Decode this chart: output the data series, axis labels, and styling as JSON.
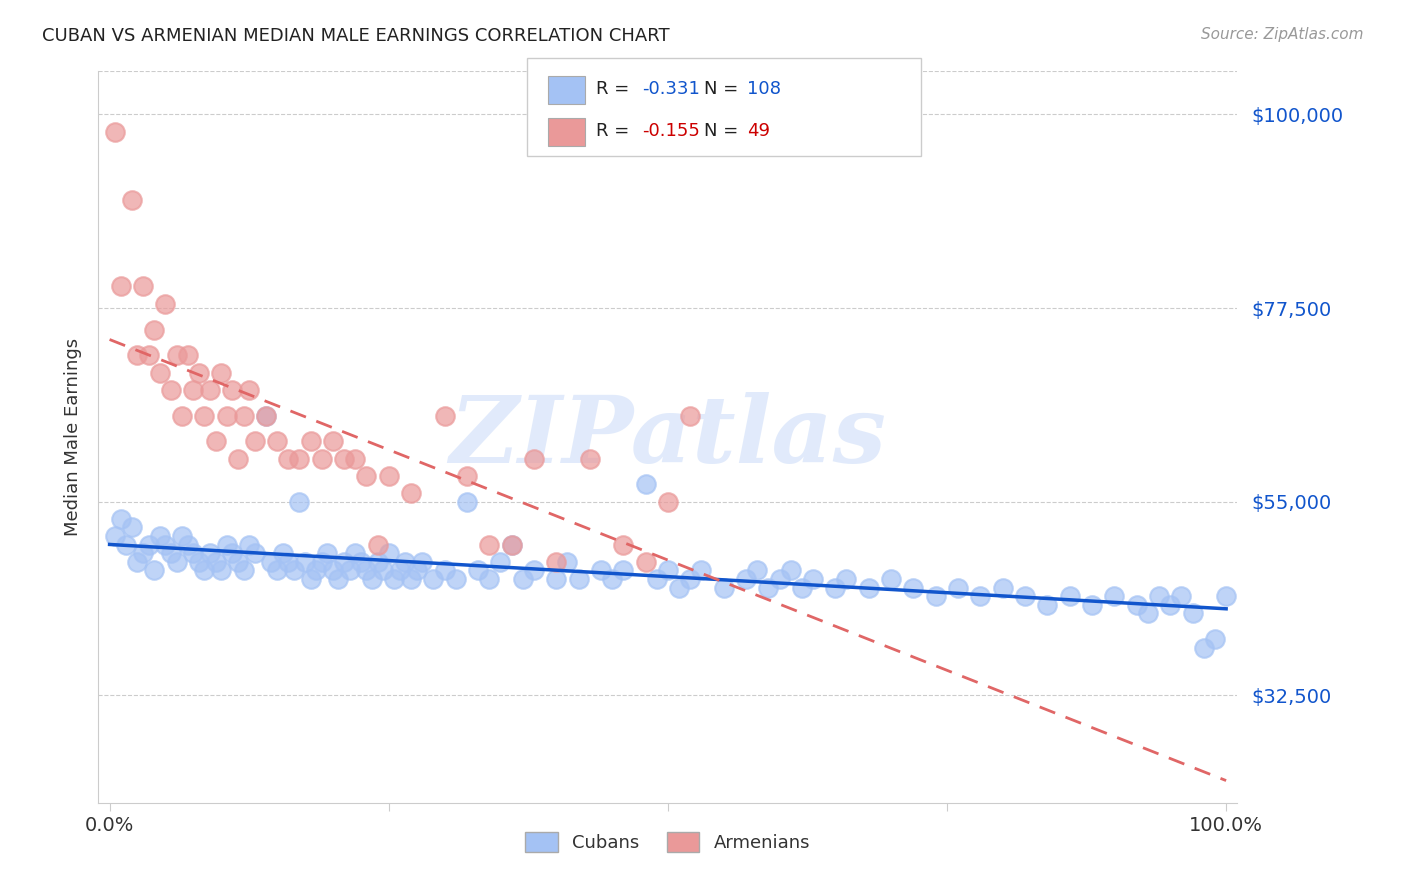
{
  "title": "CUBAN VS ARMENIAN MEDIAN MALE EARNINGS CORRELATION CHART",
  "source": "Source: ZipAtlas.com",
  "ylabel": "Median Male Earnings",
  "ytick_labels": [
    "$32,500",
    "$55,000",
    "$77,500",
    "$100,000"
  ],
  "ytick_values": [
    32500,
    55000,
    77500,
    100000
  ],
  "ymin": 20000,
  "ymax": 105000,
  "xmin": -0.01,
  "xmax": 1.01,
  "blue_color": "#a4c2f4",
  "pink_color": "#ea9999",
  "blue_line_color": "#1155cc",
  "pink_line_color": "#e06666",
  "watermark": "ZIPatlas",
  "watermark_color": "#c9daf8",
  "legend_R_blue": "-0.331",
  "legend_N_blue": "108",
  "legend_R_pink": "-0.155",
  "legend_N_pink": "49",
  "cubans_x": [
    0.005,
    0.01,
    0.015,
    0.02,
    0.025,
    0.03,
    0.035,
    0.04,
    0.045,
    0.05,
    0.055,
    0.06,
    0.065,
    0.07,
    0.075,
    0.08,
    0.085,
    0.09,
    0.095,
    0.1,
    0.105,
    0.11,
    0.115,
    0.12,
    0.125,
    0.13,
    0.14,
    0.145,
    0.15,
    0.155,
    0.16,
    0.165,
    0.17,
    0.175,
    0.18,
    0.185,
    0.19,
    0.195,
    0.2,
    0.205,
    0.21,
    0.215,
    0.22,
    0.225,
    0.23,
    0.235,
    0.24,
    0.245,
    0.25,
    0.255,
    0.26,
    0.265,
    0.27,
    0.275,
    0.28,
    0.29,
    0.3,
    0.31,
    0.32,
    0.33,
    0.34,
    0.35,
    0.36,
    0.37,
    0.38,
    0.4,
    0.41,
    0.42,
    0.44,
    0.45,
    0.46,
    0.48,
    0.49,
    0.5,
    0.51,
    0.52,
    0.53,
    0.55,
    0.57,
    0.58,
    0.59,
    0.6,
    0.61,
    0.62,
    0.63,
    0.65,
    0.66,
    0.68,
    0.7,
    0.72,
    0.74,
    0.76,
    0.78,
    0.8,
    0.82,
    0.84,
    0.86,
    0.88,
    0.9,
    0.92,
    0.93,
    0.94,
    0.95,
    0.96,
    0.97,
    0.98,
    0.99,
    1.0
  ],
  "cubans_y": [
    51000,
    53000,
    50000,
    52000,
    48000,
    49000,
    50000,
    47000,
    51000,
    50000,
    49000,
    48000,
    51000,
    50000,
    49000,
    48000,
    47000,
    49000,
    48000,
    47000,
    50000,
    49000,
    48000,
    47000,
    50000,
    49000,
    65000,
    48000,
    47000,
    49000,
    48000,
    47000,
    55000,
    48000,
    46000,
    47000,
    48000,
    49000,
    47000,
    46000,
    48000,
    47000,
    49000,
    48000,
    47000,
    46000,
    48000,
    47000,
    49000,
    46000,
    47000,
    48000,
    46000,
    47000,
    48000,
    46000,
    47000,
    46000,
    55000,
    47000,
    46000,
    48000,
    50000,
    46000,
    47000,
    46000,
    48000,
    46000,
    47000,
    46000,
    47000,
    57000,
    46000,
    47000,
    45000,
    46000,
    47000,
    45000,
    46000,
    47000,
    45000,
    46000,
    47000,
    45000,
    46000,
    45000,
    46000,
    45000,
    46000,
    45000,
    44000,
    45000,
    44000,
    45000,
    44000,
    43000,
    44000,
    43000,
    44000,
    43000,
    42000,
    44000,
    43000,
    44000,
    42000,
    38000,
    39000,
    44000
  ],
  "armenians_x": [
    0.005,
    0.01,
    0.02,
    0.025,
    0.03,
    0.035,
    0.04,
    0.045,
    0.05,
    0.055,
    0.06,
    0.065,
    0.07,
    0.075,
    0.08,
    0.085,
    0.09,
    0.095,
    0.1,
    0.105,
    0.11,
    0.115,
    0.12,
    0.125,
    0.13,
    0.14,
    0.15,
    0.16,
    0.17,
    0.18,
    0.19,
    0.2,
    0.21,
    0.22,
    0.23,
    0.24,
    0.25,
    0.27,
    0.3,
    0.32,
    0.34,
    0.36,
    0.38,
    0.4,
    0.43,
    0.46,
    0.48,
    0.5,
    0.52
  ],
  "armenians_y": [
    98000,
    80000,
    90000,
    72000,
    80000,
    72000,
    75000,
    70000,
    78000,
    68000,
    72000,
    65000,
    72000,
    68000,
    70000,
    65000,
    68000,
    62000,
    70000,
    65000,
    68000,
    60000,
    65000,
    68000,
    62000,
    65000,
    62000,
    60000,
    60000,
    62000,
    60000,
    62000,
    60000,
    60000,
    58000,
    50000,
    58000,
    56000,
    65000,
    58000,
    50000,
    50000,
    60000,
    48000,
    60000,
    50000,
    48000,
    55000,
    65000
  ],
  "grid_color": "#cccccc",
  "spine_color": "#cccccc"
}
